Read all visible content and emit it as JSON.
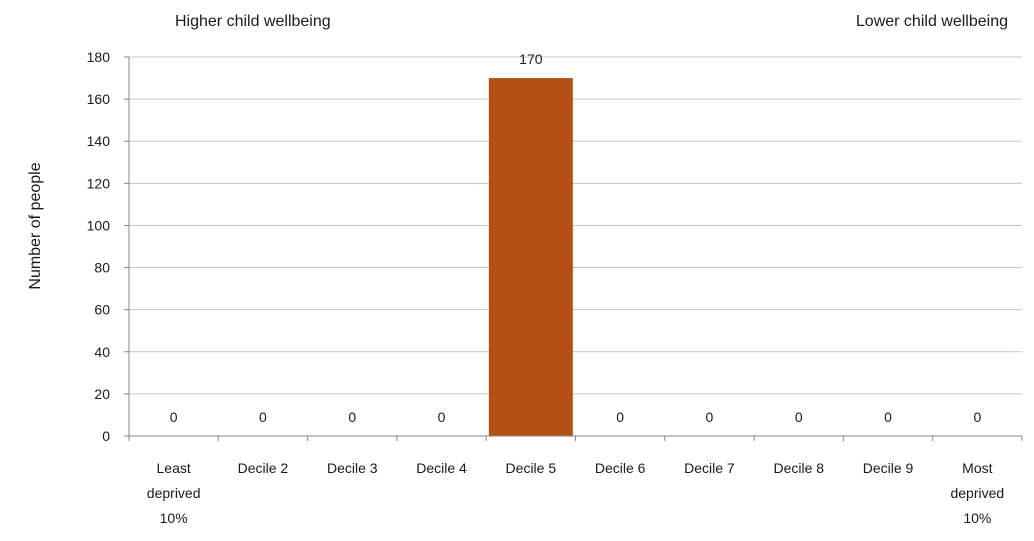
{
  "chart_data": {
    "type": "bar",
    "corner_labels": {
      "left": "Higher child wellbeing",
      "right": "Lower child wellbeing"
    },
    "ylabel": "Number of people",
    "xlabel": "",
    "categories": [
      [
        "Least",
        "deprived",
        "10%"
      ],
      [
        "Decile 2"
      ],
      [
        "Decile 3"
      ],
      [
        "Decile 4"
      ],
      [
        "Decile 5"
      ],
      [
        "Decile 6"
      ],
      [
        "Decile 7"
      ],
      [
        "Decile 8"
      ],
      [
        "Decile 9"
      ],
      [
        "Most",
        "deprived",
        "10%"
      ]
    ],
    "values": [
      0,
      0,
      0,
      0,
      170,
      0,
      0,
      0,
      0,
      0
    ],
    "data_labels": [
      "0",
      "0",
      "0",
      "0",
      "170",
      "0",
      "0",
      "0",
      "0",
      "0"
    ],
    "ylim": [
      0,
      180
    ],
    "yticks": [
      0,
      20,
      40,
      60,
      80,
      100,
      120,
      140,
      160,
      180
    ],
    "grid": true,
    "legend": "none",
    "colors": {
      "bar": "#b55015",
      "gridline": "#b9c7d9",
      "axis": "#868686"
    }
  }
}
